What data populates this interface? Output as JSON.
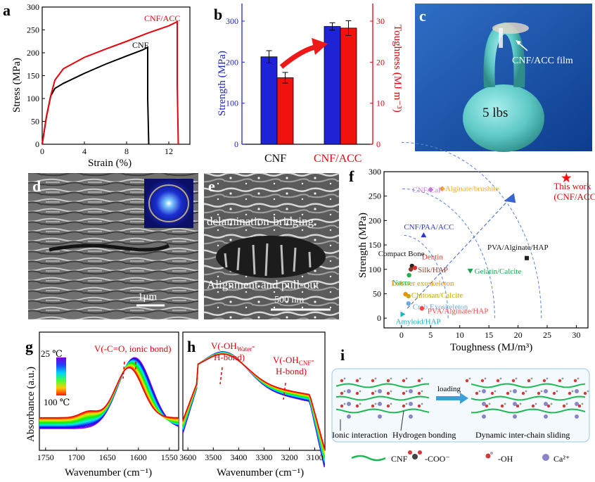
{
  "panels": {
    "a": {
      "label": "a",
      "xlabel": "Strain (%)",
      "ylabel": "Stress (MPa)",
      "xticks": [
        "0",
        "4",
        "8",
        "12"
      ],
      "yticks": [
        "0",
        "50",
        "100",
        "150",
        "200",
        "250",
        "300"
      ],
      "curve_labels": [
        "CNF",
        "CNF/ACC"
      ]
    },
    "b": {
      "label": "b",
      "ylabel_left": "Strength (MPa)",
      "ylabel_right": "Toughness (MJ m⁻³)",
      "categories": [
        "CNF",
        "CNF/ACC"
      ],
      "yticks_left": [
        "0",
        "100",
        "200",
        "300"
      ],
      "yticks_right": [
        "0",
        "10",
        "20",
        "30"
      ]
    },
    "c": {
      "label": "c",
      "film_label": "CNF/ACC film",
      "weight_label": "5 lbs"
    },
    "d": {
      "label": "d",
      "scale": "1μm"
    },
    "e": {
      "label": "e",
      "text1": "delamination-bridging",
      "text2": "Alignment and pull-out",
      "scale": "500 nm"
    },
    "f": {
      "label": "f",
      "xlabel": "Toughness (MJ/m³)",
      "ylabel": "Strength (MPa)",
      "xticks": [
        "0",
        "5",
        "10",
        "15",
        "20",
        "25",
        "30"
      ],
      "yticks": [
        "0",
        "50",
        "100",
        "150",
        "200",
        "250",
        "300"
      ]
    },
    "g": {
      "label": "g",
      "annotation": "V(-C=O, ionic bond)",
      "temp_high": "25 ℃",
      "temp_low": "100 ℃",
      "xlabel": "Wavenumber (cm⁻¹)",
      "ylabel": "Absorbance (a.u.)",
      "xticks": [
        "1750",
        "1700",
        "1650",
        "1600",
        "1550"
      ]
    },
    "h": {
      "label": "h",
      "ann1_line1": "V(-OH",
      "ann1_sub": "Water",
      "ann1_end": "-",
      "ann1_line2": "H-bond)",
      "ann2_line1": "V(-OH",
      "ann2_sub": "CNF",
      "ann2_end": "-",
      "ann2_line2": "H-bond)",
      "xlabel": "Wavenumber (cm⁻¹)",
      "xticks": [
        "3600",
        "3500",
        "3400",
        "3300",
        "3200",
        "3100"
      ]
    },
    "i": {
      "label": "i",
      "loading": "loading",
      "ionic": "Ionic interaction",
      "hbond": "Hydrogen bonding",
      "sliding": "Dynamic inter-chain sliding",
      "legend": [
        "CNF",
        "-COO⁻",
        "-OH",
        "Ca²⁺"
      ]
    }
  },
  "chart_data": [
    {
      "type": "line",
      "panel": "a",
      "xlabel": "Strain (%)",
      "ylabel": "Stress (MPa)",
      "xlim": [
        0,
        14
      ],
      "ylim": [
        0,
        300
      ],
      "series": [
        {
          "name": "CNF",
          "color": "#000000",
          "x": [
            0,
            0.4,
            0.8,
            1.2,
            2,
            4,
            6,
            8,
            9.5,
            10,
            10,
            10.1
          ],
          "y": [
            0,
            60,
            105,
            122,
            133,
            155,
            175,
            193,
            206,
            212,
            100,
            0
          ]
        },
        {
          "name": "CNF/ACC",
          "color": "#e8000b",
          "x": [
            0,
            0.4,
            0.8,
            1.2,
            2,
            4,
            6,
            8,
            10,
            12,
            12.8,
            12.8,
            12.9
          ],
          "y": [
            0,
            60,
            105,
            140,
            165,
            190,
            208,
            225,
            243,
            259,
            268,
            130,
            0
          ]
        }
      ]
    },
    {
      "type": "bar",
      "panel": "b",
      "categories": [
        "CNF",
        "CNF/ACC"
      ],
      "ylim_left": [
        0,
        300
      ],
      "ylim_right": [
        0,
        30
      ],
      "series": [
        {
          "name": "Strength (MPa)",
          "axis": "left",
          "color": "#1f23d6",
          "values": [
            213,
            287
          ],
          "errors": [
            15,
            9
          ]
        },
        {
          "name": "Toughness (MJ m⁻³)",
          "axis": "right",
          "color": "#f2120d",
          "values": [
            16.2,
            28.3
          ],
          "errors": [
            1.3,
            1.8
          ]
        }
      ]
    },
    {
      "type": "scatter",
      "panel": "f",
      "xlim": [
        -3,
        32
      ],
      "ylim": [
        -20,
        300
      ],
      "points": [
        {
          "label": "This work\n(CNF/ACC)",
          "x": 28.3,
          "y": 287,
          "color": "#ff1010",
          "marker": "star"
        },
        {
          "label": "Alginate/brushite",
          "x": 7,
          "y": 265,
          "color": "#f5a623",
          "marker": "diamond"
        },
        {
          "label": "CNF/CaP",
          "x": 5,
          "y": 263,
          "color": "#c07ad8",
          "marker": "diamond"
        },
        {
          "label": "CNF/PAA/ACC",
          "x": 3.8,
          "y": 170,
          "color": "#2b35d8",
          "marker": "triangle"
        },
        {
          "label": "PVA/Alginate/HAP",
          "x": 21.5,
          "y": 123,
          "color": "#202020",
          "marker": "square"
        },
        {
          "label": "Gelatin/Calcite",
          "x": 11.8,
          "y": 97,
          "color": "#1aa34a",
          "marker": "triangle-down"
        },
        {
          "label": "Compact Bone",
          "x": 1.8,
          "y": 107,
          "color": "#222222",
          "marker": "circle"
        },
        {
          "label": "Dentin",
          "x": 2.3,
          "y": 103,
          "color": "#e03030",
          "marker": "circle"
        },
        {
          "label": "Silk/HAP",
          "x": 1.6,
          "y": 100,
          "color": "#8b3a2a",
          "marker": "circle"
        },
        {
          "label": "Nacre",
          "x": 1.3,
          "y": 88,
          "color": "#22b14c",
          "marker": "circle"
        },
        {
          "label": "Lobster exoskeleton",
          "x": 0.7,
          "y": 49,
          "color": "#f08c00",
          "marker": "circle"
        },
        {
          "label": "Chitosan/Calcite",
          "x": 1.2,
          "y": 45,
          "color": "#c8a800",
          "marker": "circle"
        },
        {
          "label": "Crab Exoskeleton",
          "x": 1.2,
          "y": 30,
          "color": "#6fa8dc",
          "marker": "circle"
        },
        {
          "label": "PVA/Alginate/HAP",
          "x": 3.5,
          "y": 20,
          "color": "#ff4444",
          "marker": "circle"
        },
        {
          "label": "Amyloid/HAP",
          "x": 0.2,
          "y": 8,
          "color": "#17b3c0",
          "marker": "triangle-right"
        }
      ]
    },
    {
      "type": "line",
      "panel": "g",
      "xlabel": "Wavenumber (cm⁻¹)",
      "ylabel": "Absorbance (a.u.)",
      "xlim": [
        1760,
        1535
      ],
      "series_count": 16,
      "temperature_range": [
        "25 ℃",
        "100 ℃"
      ]
    },
    {
      "type": "line",
      "panel": "h",
      "xlabel": "Wavenumber (cm⁻¹)",
      "xlim": [
        3620,
        3060
      ],
      "series_count": 16
    }
  ]
}
